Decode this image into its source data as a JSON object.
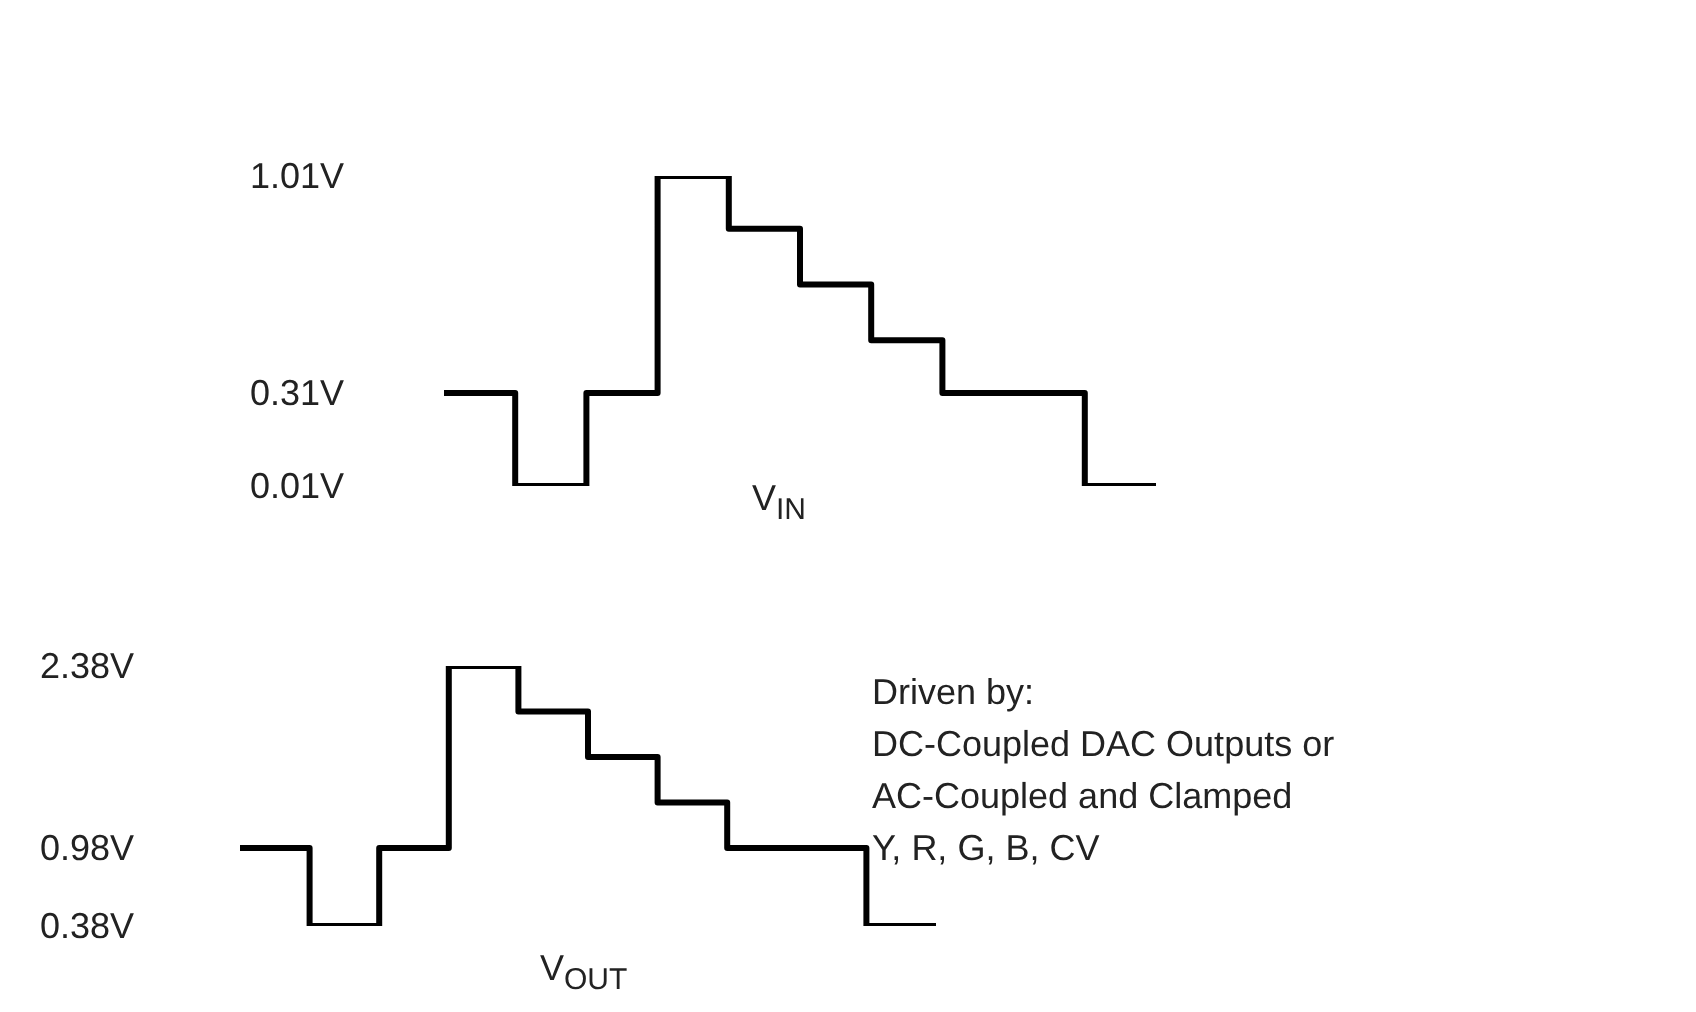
{
  "chart_data": [
    {
      "type": "step",
      "categories": [
        null,
        null,
        null,
        null,
        null,
        null,
        null,
        null,
        null,
        null,
        null
      ],
      "values": [
        0.31,
        0.01,
        0.31,
        1.01,
        0.84,
        0.66,
        0.48,
        0.31,
        0.31,
        0.01,
        0.01
      ],
      "color": "#000000",
      "ylim": [
        0.01,
        1.01
      ],
      "yticks": [
        {
          "value": 0.01,
          "label": "0.01V"
        },
        {
          "value": 0.31,
          "label": "0.31V"
        },
        {
          "value": 1.01,
          "label": "1.01V"
        }
      ],
      "tick_labels": "y",
      "grid": false,
      "legend": false,
      "marker": "none",
      "annotations": [
        "V$_{IN}$"
      ]
    },
    {
      "type": "step",
      "categories": [
        null,
        null,
        null,
        null,
        null,
        null,
        null,
        null,
        null,
        null,
        null
      ],
      "values": [
        0.98,
        0.38,
        0.98,
        2.38,
        2.03,
        1.68,
        1.33,
        0.98,
        0.98,
        0.38,
        0.38
      ],
      "color": "#000000",
      "ylim": [
        0.38,
        2.38
      ],
      "yticks": [
        {
          "value": 0.38,
          "label": "0.38V"
        },
        {
          "value": 0.98,
          "label": "0.98V"
        },
        {
          "value": 2.38,
          "label": "2.38V"
        }
      ],
      "tick_labels": "y",
      "grid": false,
      "legend": false,
      "marker": "none",
      "annotations": [
        "V$_{OUT}$",
        "Driven by:\nDC-Coupled DAC Outputs or\nAC-Coupled and Clamped\nY, R, G, B, CV"
      ]
    }
  ]
}
